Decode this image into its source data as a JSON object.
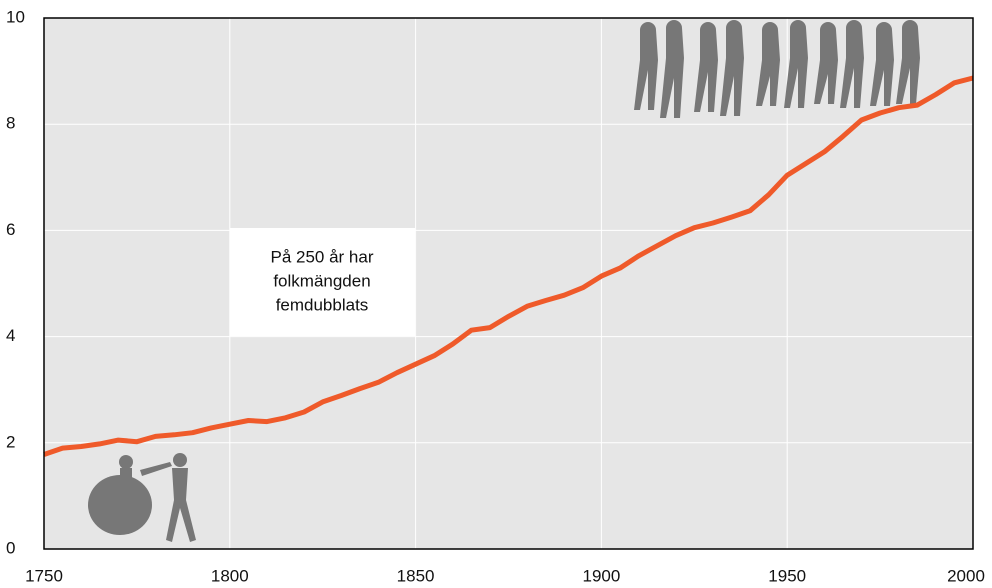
{
  "chart_data": {
    "type": "line",
    "x": [
      1750,
      1755,
      1760,
      1765,
      1770,
      1775,
      1780,
      1785,
      1790,
      1795,
      1800,
      1805,
      1810,
      1815,
      1820,
      1825,
      1830,
      1835,
      1840,
      1845,
      1850,
      1855,
      1860,
      1865,
      1870,
      1875,
      1880,
      1885,
      1890,
      1895,
      1900,
      1905,
      1910,
      1915,
      1920,
      1925,
      1930,
      1935,
      1940,
      1945,
      1950,
      1955,
      1960,
      1965,
      1970,
      1975,
      1980,
      1985,
      1990,
      1995,
      2000
    ],
    "values": [
      1.78,
      1.9,
      1.93,
      1.98,
      2.05,
      2.02,
      2.12,
      2.15,
      2.19,
      2.28,
      2.35,
      2.42,
      2.4,
      2.47,
      2.58,
      2.77,
      2.89,
      3.02,
      3.14,
      3.32,
      3.48,
      3.64,
      3.86,
      4.12,
      4.17,
      4.38,
      4.57,
      4.68,
      4.78,
      4.92,
      5.14,
      5.29,
      5.52,
      5.71,
      5.9,
      6.05,
      6.14,
      6.25,
      6.37,
      6.67,
      7.04,
      7.26,
      7.48,
      7.77,
      8.08,
      8.21,
      8.31,
      8.36,
      8.56,
      8.78,
      8.87
    ],
    "color": "#ef5a2a",
    "xlim": [
      1750,
      2000
    ],
    "xticks": [
      1750,
      1800,
      1850,
      1900,
      1950,
      2000
    ],
    "ylim": [
      0,
      10
    ],
    "yticks": [
      0,
      2,
      4,
      6,
      8,
      10
    ],
    "grid": true,
    "annotation": [
      "På 250 år har",
      "folkmängden",
      "femdubblats"
    ]
  }
}
